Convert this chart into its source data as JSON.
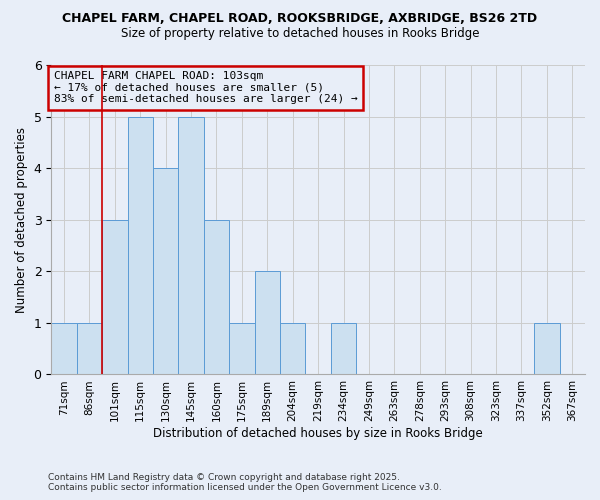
{
  "title1": "CHAPEL FARM, CHAPEL ROAD, ROOKSBRIDGE, AXBRIDGE, BS26 2TD",
  "title2": "Size of property relative to detached houses in Rooks Bridge",
  "xlabel": "Distribution of detached houses by size in Rooks Bridge",
  "ylabel": "Number of detached properties",
  "footer1": "Contains HM Land Registry data © Crown copyright and database right 2025.",
  "footer2": "Contains public sector information licensed under the Open Government Licence v3.0.",
  "annotation_line1": "CHAPEL FARM CHAPEL ROAD: 103sqm",
  "annotation_line2": "← 17% of detached houses are smaller (5)",
  "annotation_line3": "83% of semi-detached houses are larger (24) →",
  "bins": [
    "71sqm",
    "86sqm",
    "101sqm",
    "115sqm",
    "130sqm",
    "145sqm",
    "160sqm",
    "175sqm",
    "189sqm",
    "204sqm",
    "219sqm",
    "234sqm",
    "249sqm",
    "263sqm",
    "278sqm",
    "293sqm",
    "308sqm",
    "323sqm",
    "337sqm",
    "352sqm",
    "367sqm"
  ],
  "values": [
    1,
    1,
    3,
    5,
    4,
    5,
    3,
    1,
    2,
    1,
    0,
    1,
    0,
    0,
    0,
    0,
    0,
    0,
    0,
    1,
    0
  ],
  "bar_color": "#cce0f0",
  "bar_edge_color": "#5b9bd5",
  "subject_line_color": "#cc0000",
  "annotation_box_color": "#cc0000",
  "grid_color": "#cccccc",
  "background_color": "#e8eef8",
  "ylim": [
    0,
    6
  ],
  "yticks": [
    0,
    1,
    2,
    3,
    4,
    5,
    6
  ]
}
